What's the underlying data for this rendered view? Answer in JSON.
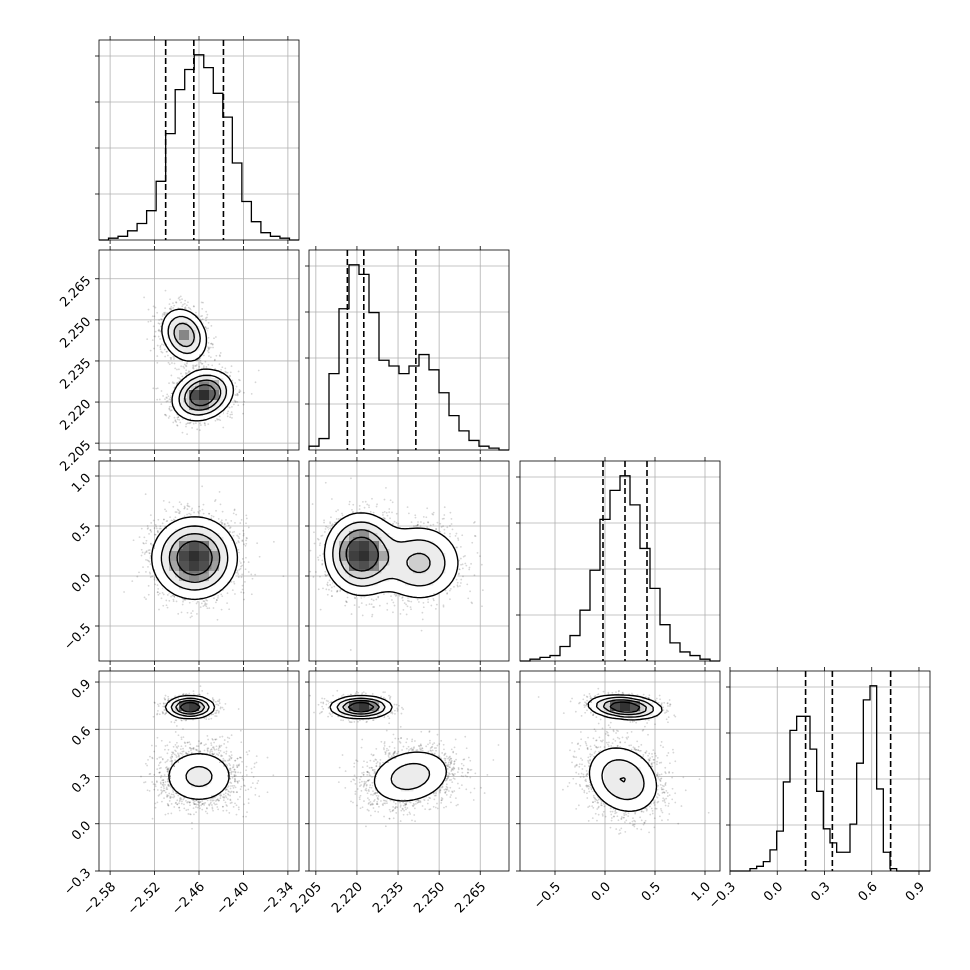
{
  "chart_data": {
    "type": "corner",
    "grid": true,
    "parameters": [
      {
        "range": [
          -2.595,
          -2.325
        ],
        "ticks": [
          -2.58,
          -2.52,
          -2.46,
          -2.4,
          -2.34
        ],
        "tick_labels": [
          "−2.58",
          "−2.52",
          "−2.46",
          "−2.40",
          "−2.34"
        ],
        "quantiles": [
          -2.505,
          -2.467,
          -2.427
        ],
        "histogram": [
          0,
          1,
          2,
          5,
          9,
          16,
          32,
          58,
          82,
          93,
          101,
          94,
          80,
          67,
          42,
          21,
          10,
          4,
          2,
          1,
          0
        ],
        "components": [
          {
            "w": 1.0,
            "m": -2.466,
            "s": 0.028
          }
        ]
      },
      {
        "range": [
          2.2025,
          2.2755
        ],
        "ticks": [
          2.205,
          2.22,
          2.235,
          2.25,
          2.265
        ],
        "tick_labels": [
          "2.205",
          "2.220",
          "2.235",
          "2.250",
          "2.265"
        ],
        "quantiles": [
          2.2165,
          2.2225,
          2.2415
        ],
        "histogram": [
          2,
          6,
          40,
          74,
          97,
          92,
          72,
          47,
          44,
          40,
          44,
          50,
          42,
          30,
          18,
          10,
          5,
          2,
          1,
          0
        ],
        "components": [
          {
            "w": 0.6,
            "m": 2.2215,
            "s": 0.0065
          },
          {
            "w": 0.4,
            "m": 2.243,
            "s": 0.008
          }
        ]
      },
      {
        "range": [
          -0.85,
          1.15
        ],
        "ticks": [
          -0.5,
          0.0,
          0.5,
          1.0
        ],
        "tick_labels": [
          "−0.5",
          "0.0",
          "0.5",
          "1.0"
        ],
        "quantiles": [
          -0.02,
          0.2,
          0.42
        ],
        "histogram": [
          0,
          1,
          2,
          3,
          8,
          14,
          28,
          50,
          78,
          94,
          102,
          86,
          62,
          40,
          20,
          10,
          5,
          3,
          1,
          0
        ],
        "components": [
          {
            "w": 1.0,
            "m": 0.2,
            "s": 0.22
          }
        ]
      },
      {
        "range": [
          -0.3,
          0.97
        ],
        "ticks": [
          -0.3,
          0.0,
          0.3,
          0.6,
          0.9
        ],
        "tick_labels": [
          "−0.3",
          "0.0",
          "0.3",
          "0.6",
          "0.9"
        ],
        "quantiles": [
          0.18,
          0.35,
          0.72
        ],
        "histogram": [
          0,
          0,
          0,
          1,
          2,
          4,
          9,
          17,
          38,
          60,
          66,
          66,
          52,
          34,
          18,
          12,
          8,
          8,
          20,
          46,
          73,
          79,
          35,
          8,
          1,
          0,
          0,
          0,
          0,
          0
        ],
        "components": [
          {
            "w": 0.63,
            "m": 0.28,
            "s": 0.11
          },
          {
            "w": 0.37,
            "m": 0.74,
            "s": 0.04
          }
        ]
      }
    ],
    "pairs": {
      "1-0": {
        "blobs": [
          {
            "w": 0.38,
            "mx": -2.48,
            "my": 2.2445,
            "sx": 0.016,
            "sy": 0.005,
            "r": -0.2
          },
          {
            "w": 0.62,
            "mx": -2.455,
            "my": 2.2225,
            "sx": 0.02,
            "sy": 0.0045,
            "r": 0.2
          }
        ]
      },
      "2-0": {
        "blobs": [
          {
            "w": 1.0,
            "mx": -2.466,
            "my": 0.18,
            "sx": 0.028,
            "sy": 0.2,
            "r": 0.0
          }
        ]
      },
      "2-1": {
        "blobs": [
          {
            "w": 0.6,
            "mx": 2.2215,
            "my": 0.22,
            "sx": 0.0065,
            "sy": 0.2,
            "r": 0.0
          },
          {
            "w": 0.4,
            "mx": 2.243,
            "my": 0.13,
            "sx": 0.008,
            "sy": 0.2,
            "r": 0.0
          }
        ]
      },
      "3-0": {
        "blobs": [
          {
            "w": 0.63,
            "mx": -2.46,
            "my": 0.3,
            "sx": 0.028,
            "sy": 0.1,
            "r": 0.0
          },
          {
            "w": 0.37,
            "mx": -2.472,
            "my": 0.74,
            "sx": 0.016,
            "sy": 0.035,
            "r": 0.0
          }
        ]
      },
      "3-1": {
        "blobs": [
          {
            "w": 0.37,
            "mx": 2.2215,
            "my": 0.74,
            "sx": 0.0055,
            "sy": 0.035,
            "r": 0.0
          },
          {
            "w": 0.63,
            "mx": 2.2395,
            "my": 0.3,
            "sx": 0.0085,
            "sy": 0.1,
            "r": 0.2
          }
        ]
      },
      "3-2": {
        "blobs": [
          {
            "w": 0.37,
            "mx": 0.2,
            "my": 0.74,
            "sx": 0.18,
            "sy": 0.038,
            "r": -0.2
          },
          {
            "w": 0.63,
            "mx": 0.18,
            "my": 0.28,
            "sx": 0.2,
            "sy": 0.12,
            "r": -0.2
          }
        ]
      }
    }
  }
}
